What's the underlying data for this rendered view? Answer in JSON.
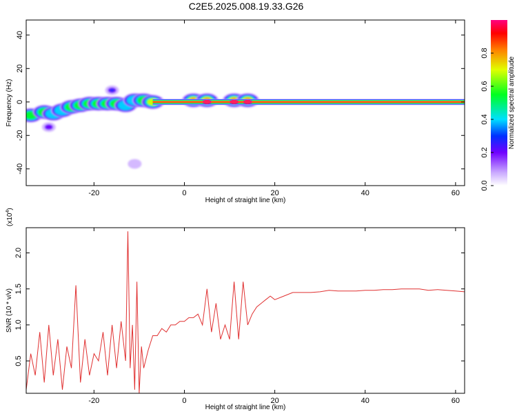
{
  "title": "C2E5.2025.008.19.33.G26",
  "colors": {
    "snr_line": "#e03030",
    "track": "#e0303a"
  },
  "chart_data": [
    {
      "type": "heatmap",
      "xlabel": "Height of straight line (km)",
      "ylabel": "Frequency (Hz)",
      "xlim": [
        -35,
        62
      ],
      "ylim": [
        -50,
        49
      ],
      "xticks": [
        -20,
        0,
        20,
        40,
        60
      ],
      "yticks": [
        -40,
        -20,
        0,
        20,
        40
      ],
      "colorbar": {
        "label": "Normalized spectral amplitude",
        "range": [
          0,
          1
        ],
        "ticks": [
          "0.0",
          "0.2",
          "0.4",
          "0.6",
          "0.8"
        ],
        "tick_values": [
          0.0,
          0.2,
          0.4,
          0.6,
          0.8
        ]
      },
      "ridge": [
        {
          "x": -34,
          "f": -8,
          "amp": 0.6
        },
        {
          "x": -31,
          "f": -6,
          "amp": 0.55
        },
        {
          "x": -29,
          "f": -7,
          "amp": 0.5
        },
        {
          "x": -27,
          "f": -5,
          "amp": 0.5
        },
        {
          "x": -25,
          "f": -3,
          "amp": 0.55
        },
        {
          "x": -23,
          "f": -2,
          "amp": 0.6
        },
        {
          "x": -21,
          "f": -1,
          "amp": 0.65
        },
        {
          "x": -19,
          "f": -1,
          "amp": 0.55
        },
        {
          "x": -17,
          "f": -1,
          "amp": 0.6
        },
        {
          "x": -15,
          "f": -1,
          "amp": 0.55
        },
        {
          "x": -13,
          "f": -2,
          "amp": 0.5
        },
        {
          "x": -11,
          "f": 1,
          "amp": 0.5
        },
        {
          "x": -9,
          "f": 1,
          "amp": 0.6
        },
        {
          "x": -7,
          "f": 0,
          "amp": 0.8
        },
        {
          "x": 2,
          "f": 1,
          "amp": 0.85
        },
        {
          "x": 5,
          "f": 1,
          "amp": 0.9
        },
        {
          "x": 11,
          "f": 1,
          "amp": 0.9
        },
        {
          "x": 14,
          "f": 1,
          "amp": 0.85
        }
      ],
      "blobs": [
        {
          "x": -16,
          "f": 7,
          "amp": 0.3
        },
        {
          "x": -30,
          "f": -15,
          "amp": 0.2
        },
        {
          "x": -11,
          "f": -37,
          "amp": 0.1
        }
      ],
      "track": {
        "x_start": -7,
        "x_end": 62,
        "f": 0
      }
    },
    {
      "type": "line",
      "xlabel": "Height of straight line (km)",
      "ylabel": "SNR (10 * v/v)",
      "multiplier": "(x10",
      "multiplier_exp": "4",
      "multiplier_close": ")",
      "xlim": [
        -35,
        62
      ],
      "ylim": [
        0.05,
        2.35
      ],
      "xticks": [
        -20,
        0,
        20,
        40,
        60
      ],
      "yticks": [
        0.5,
        1.0,
        1.5,
        2.0
      ],
      "ytick_labels": [
        "0.5",
        "1.0",
        "1.5",
        "2.0"
      ],
      "series": [
        {
          "x": [
            -35,
            -34,
            -33,
            -32,
            -31,
            -30,
            -29,
            -28,
            -27,
            -26,
            -25,
            -24,
            -23,
            -22,
            -21,
            -20,
            -19,
            -18,
            -17,
            -16,
            -15,
            -14,
            -13,
            -12.5,
            -12,
            -11.5,
            -11,
            -10.5,
            -10,
            -9.5,
            -9,
            -8,
            -7,
            -6,
            -5,
            -4,
            -3,
            -2,
            -1,
            0,
            1,
            2,
            3,
            4,
            5,
            6,
            7,
            8,
            9,
            10,
            11,
            12,
            13,
            14,
            15,
            16,
            17,
            18,
            19,
            20,
            22,
            24,
            26,
            28,
            30,
            32,
            34,
            36,
            38,
            40,
            42,
            44,
            46,
            48,
            50,
            52,
            54,
            56,
            58,
            60,
            62
          ],
          "y": [
            0.1,
            0.6,
            0.3,
            0.9,
            0.2,
            1.0,
            0.3,
            0.8,
            0.1,
            0.7,
            0.4,
            1.55,
            0.2,
            0.8,
            0.3,
            0.6,
            0.5,
            0.9,
            0.3,
            1.0,
            0.4,
            1.05,
            0.5,
            2.3,
            0.4,
            1.0,
            0.1,
            1.6,
            0.05,
            0.7,
            0.4,
            0.65,
            0.85,
            0.85,
            0.95,
            0.9,
            1.0,
            1.0,
            1.05,
            1.05,
            1.1,
            1.1,
            1.15,
            1.0,
            1.5,
            0.9,
            1.3,
            0.8,
            1.0,
            0.8,
            1.6,
            0.8,
            1.6,
            1.0,
            1.15,
            1.25,
            1.3,
            1.35,
            1.4,
            1.35,
            1.4,
            1.45,
            1.45,
            1.45,
            1.46,
            1.48,
            1.47,
            1.47,
            1.47,
            1.48,
            1.48,
            1.49,
            1.49,
            1.5,
            1.5,
            1.5,
            1.48,
            1.49,
            1.48,
            1.47,
            1.46
          ]
        }
      ]
    }
  ]
}
